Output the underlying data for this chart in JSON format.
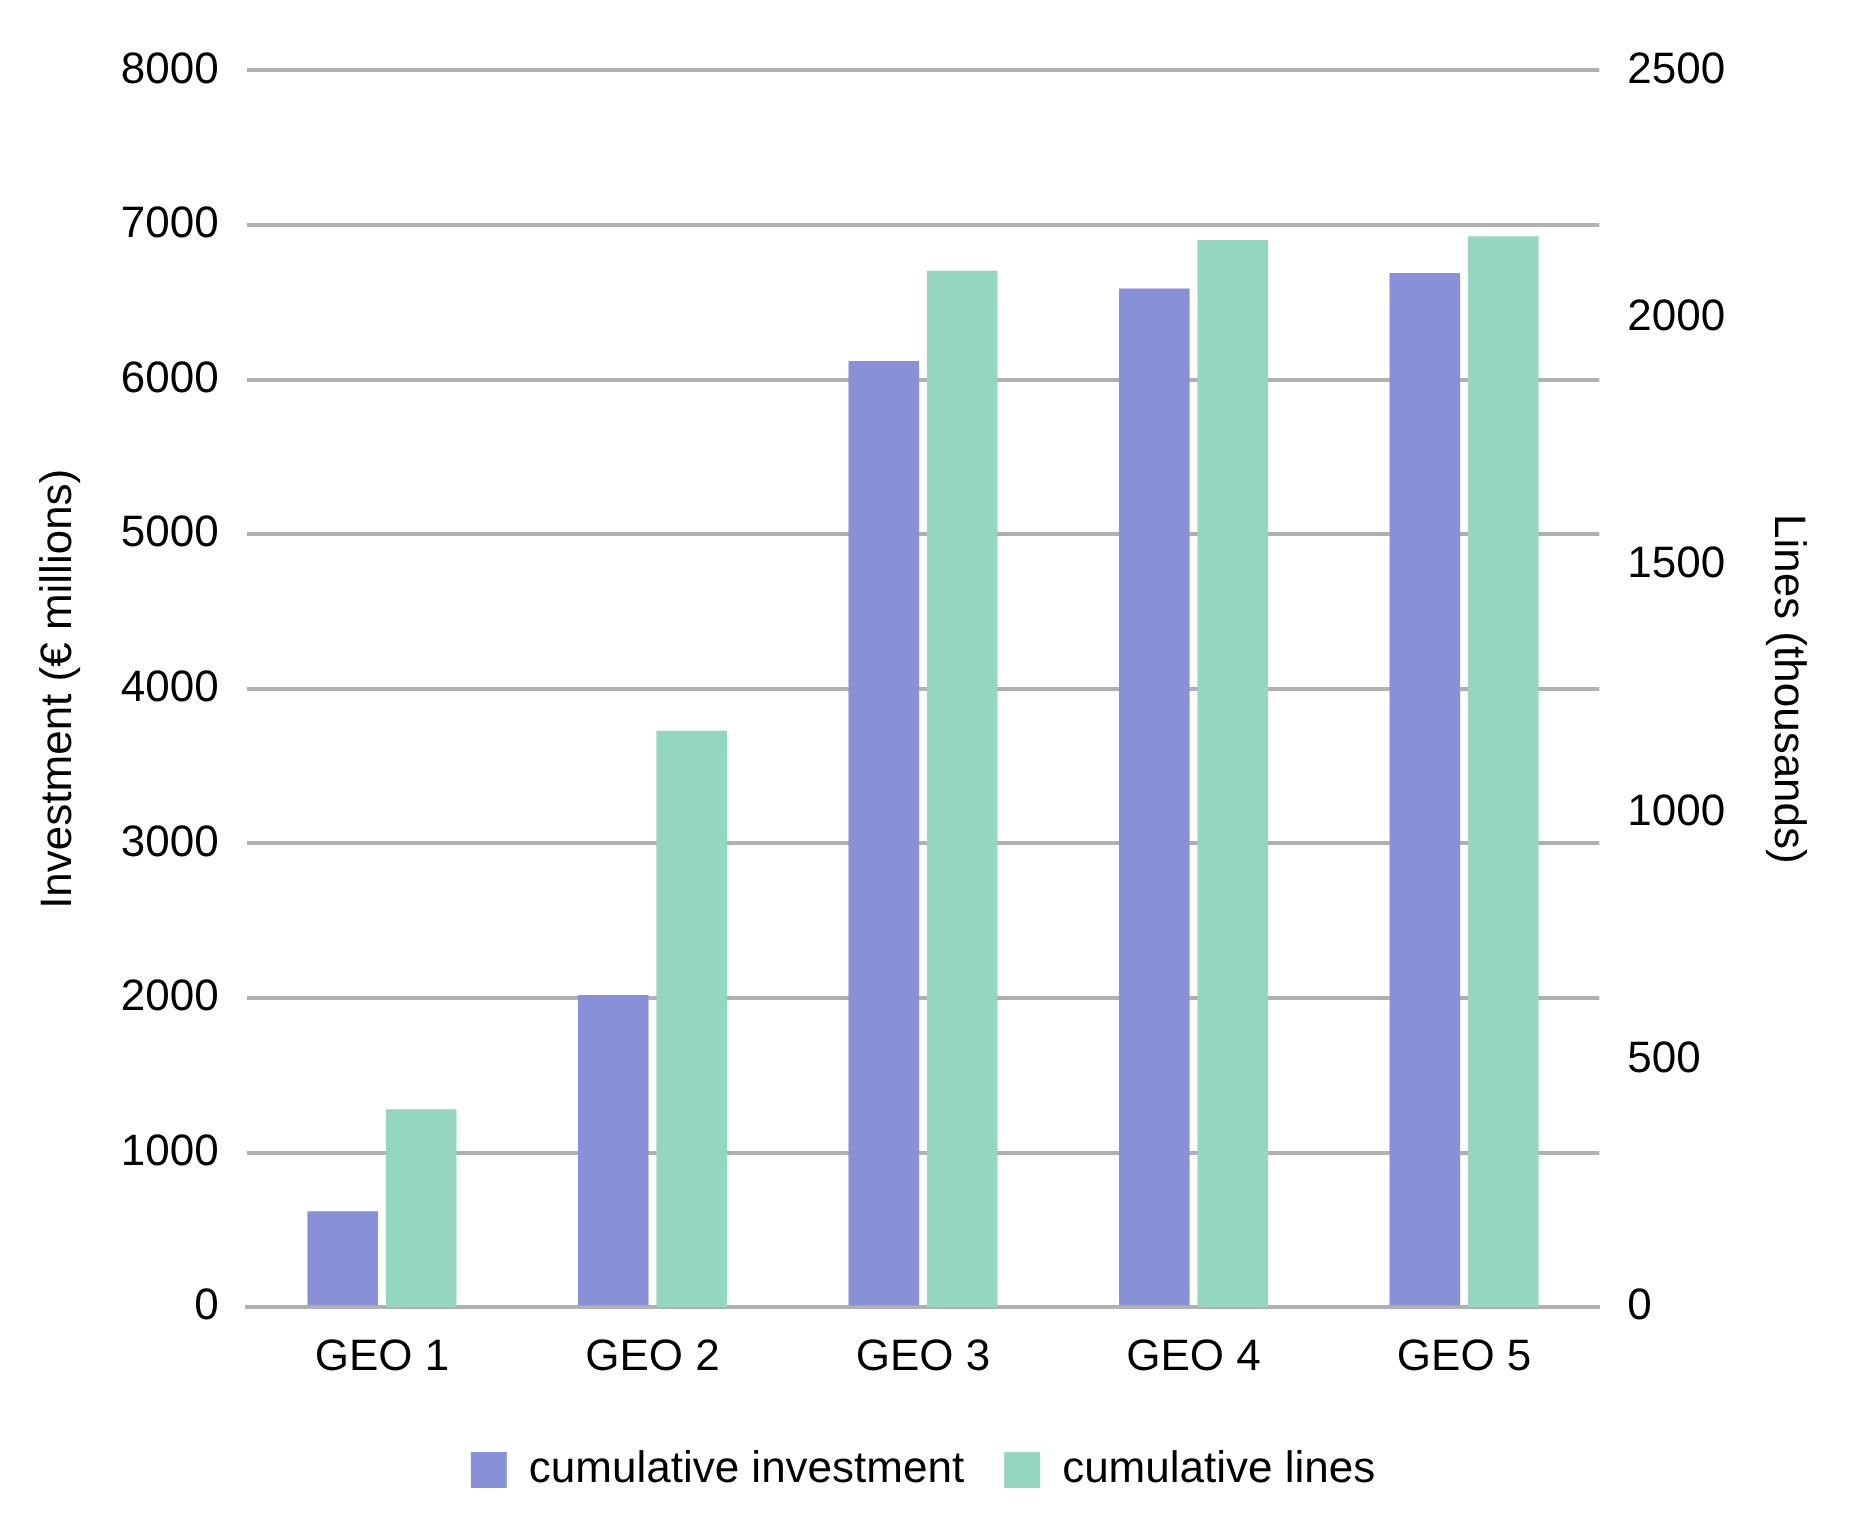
{
  "chart_data": {
    "type": "bar",
    "categories": [
      "GEO 1",
      "GEO 2",
      "GEO 3",
      "GEO 4",
      "GEO 5"
    ],
    "series": [
      {
        "name": "cumulative investment",
        "color": "#8891d8",
        "values": [
          620,
          2020,
          6120,
          6590,
          6690
        ]
      },
      {
        "name": "cumulative lines",
        "color": "#93d7c0",
        "values": [
          400,
          1165,
          2095,
          2157,
          2165
        ],
        "axis": "y2"
      }
    ],
    "ylabel": "Investment (€ millions)",
    "y2label": "Lines (thousands)",
    "ylim": [
      0,
      8000
    ],
    "yticks": [
      0,
      1000,
      2000,
      3000,
      4000,
      5000,
      6000,
      7000,
      8000
    ],
    "y2lim": [
      0,
      2500
    ],
    "y2ticks": [
      0,
      500,
      1000,
      1500,
      2000,
      2500
    ],
    "grid": "y",
    "legend": "bottom"
  }
}
